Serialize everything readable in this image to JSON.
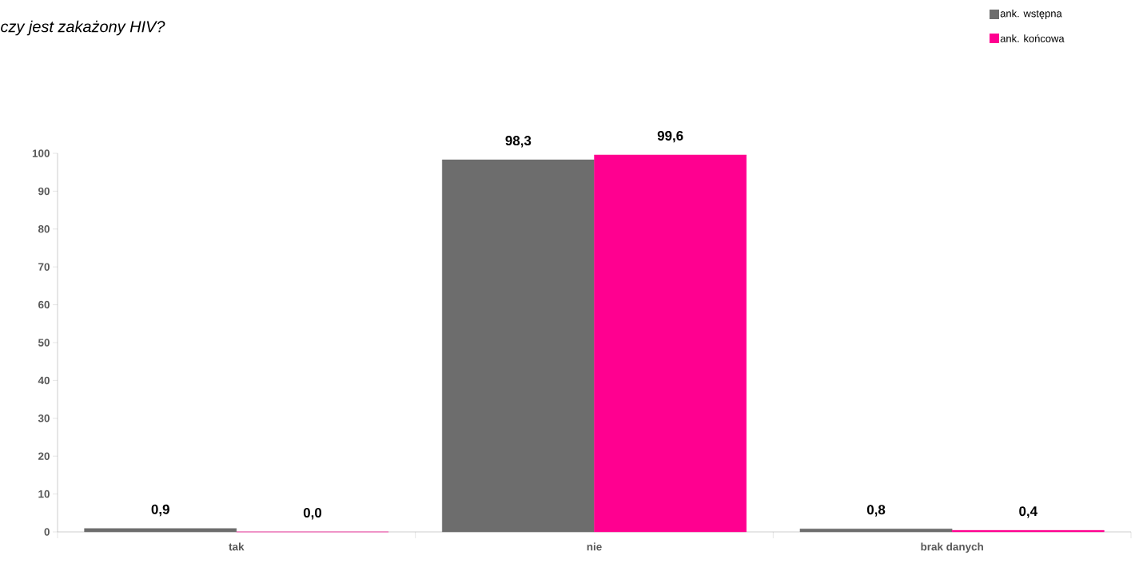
{
  "chart_data": {
    "type": "bar",
    "title": "czy jest zakażony HIV?",
    "categories": [
      "tak",
      "nie",
      "brak danych"
    ],
    "series": [
      {
        "name": "ank. wstępna",
        "color": "#6d6d6d",
        "values": [
          0.9,
          98.3,
          0.8
        ],
        "value_labels": [
          "0,9",
          "98,3",
          "0,8"
        ]
      },
      {
        "name": "ank.  końcowa",
        "color": "#ff0090",
        "values": [
          0.0,
          99.6,
          0.4
        ],
        "value_labels": [
          "0,0",
          "99,6",
          "0,4"
        ]
      }
    ],
    "ylim": [
      0,
      100
    ],
    "yticks": [
      0,
      10,
      20,
      30,
      40,
      50,
      60,
      70,
      80,
      90,
      100
    ],
    "grid": false,
    "legend": "top right"
  }
}
